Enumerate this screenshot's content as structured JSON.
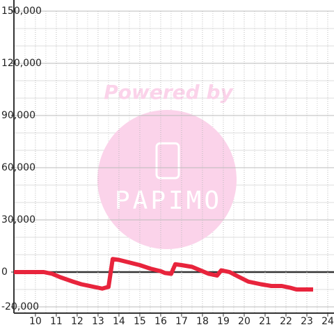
{
  "chart_data": {
    "type": "line",
    "watermark": {
      "title": "Powered by",
      "brand": "PAPIMO"
    },
    "x": [
      8.97,
      10.4,
      10.8,
      11.2,
      11.8,
      12.2,
      12.8,
      13.2,
      13.5,
      13.7,
      14.0,
      14.5,
      15.0,
      15.5,
      16.0,
      16.2,
      16.5,
      16.7,
      17.0,
      17.5,
      18.0,
      18.3,
      18.7,
      18.9,
      19.3,
      19.7,
      20.2,
      20.8,
      21.3,
      21.8,
      22.2,
      22.5,
      23.3
    ],
    "series": [
      {
        "color": "#e8243c",
        "values": [
          0,
          0,
          -1000,
          -3000,
          -5500,
          -7000,
          -8500,
          -9500,
          -8500,
          7500,
          7000,
          5500,
          4000,
          2000,
          500,
          -500,
          -1000,
          4500,
          4000,
          3000,
          500,
          -1000,
          -2000,
          1000,
          0,
          -2500,
          -5500,
          -7000,
          -8000,
          -8000,
          -9000,
          -10000,
          -10000
        ]
      }
    ],
    "xlim": [
      8.97,
      24.3
    ],
    "xticks": [
      10,
      11,
      12,
      13,
      14,
      15,
      16,
      17,
      18,
      19,
      20,
      21,
      22,
      23,
      24
    ],
    "ylim": [
      -23600,
      150000
    ],
    "yticks": [
      {
        "value": -20000,
        "label": "-20,000"
      },
      0,
      {
        "value": 30000,
        "label": "30,000"
      },
      {
        "value": 60000,
        "label": "60,000"
      },
      {
        "value": 90000,
        "label": "90,000"
      },
      {
        "value": 120000,
        "label": "120,000"
      },
      {
        "value": 150000,
        "label": "150,000"
      }
    ],
    "grid": true
  }
}
